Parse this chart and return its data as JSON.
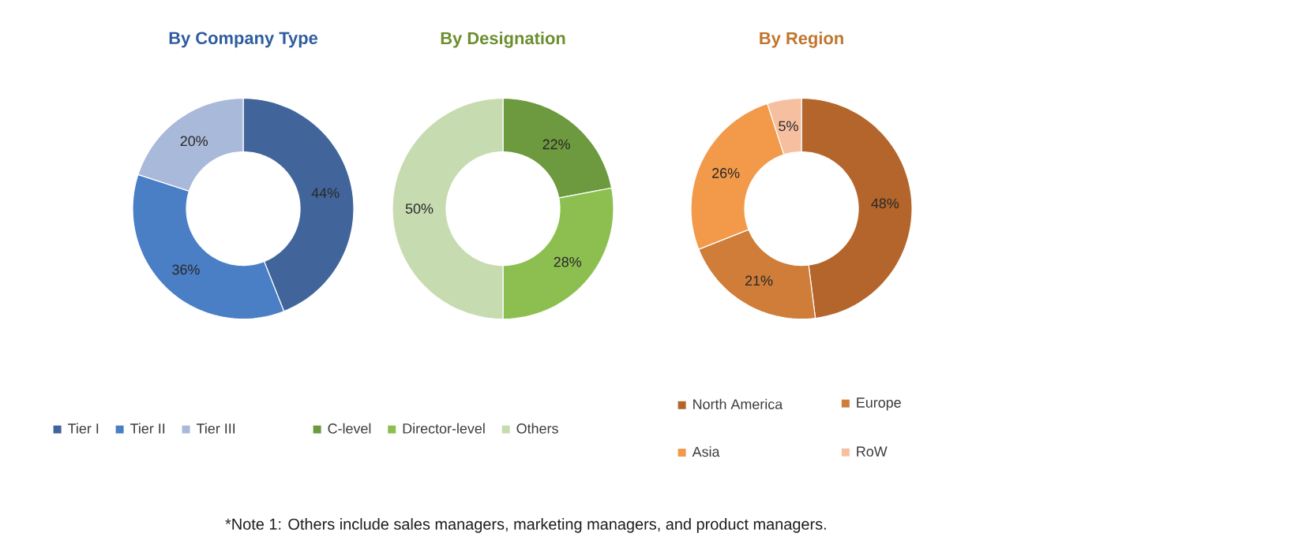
{
  "chart_data": [
    {
      "type": "donut",
      "title": "By Company Type",
      "categories": [
        "Tier I",
        "Tier II",
        "Tier III"
      ],
      "values": [
        44,
        36,
        20
      ],
      "colors": [
        "#41659b",
        "#4a7ec5",
        "#a9b9da"
      ],
      "value_labels": [
        "44%",
        "36%",
        "20%"
      ],
      "legend": "bottom"
    },
    {
      "type": "donut",
      "title": "By Designation",
      "categories": [
        "C-level",
        "Director-level",
        "Others"
      ],
      "values": [
        22,
        28,
        50
      ],
      "colors": [
        "#6d9a3e",
        "#8dbf50",
        "#c6dcb0"
      ],
      "value_labels": [
        "22%",
        "28%",
        "50%"
      ],
      "legend": "bottom",
      "annotations": [
        "*Note 1: Others include sales managers, marketing managers, and product managers."
      ]
    },
    {
      "type": "donut",
      "title": "By Region",
      "categories": [
        "North America",
        "Europe",
        "Asia",
        "RoW"
      ],
      "values": [
        48,
        21,
        26,
        5
      ],
      "colors": [
        "#b4652c",
        "#cf7d38",
        "#f29a4a",
        "#f6bfa0"
      ],
      "value_labels": [
        "48%",
        "21%",
        "26%",
        "5%"
      ],
      "legend": "bottom"
    }
  ]
}
